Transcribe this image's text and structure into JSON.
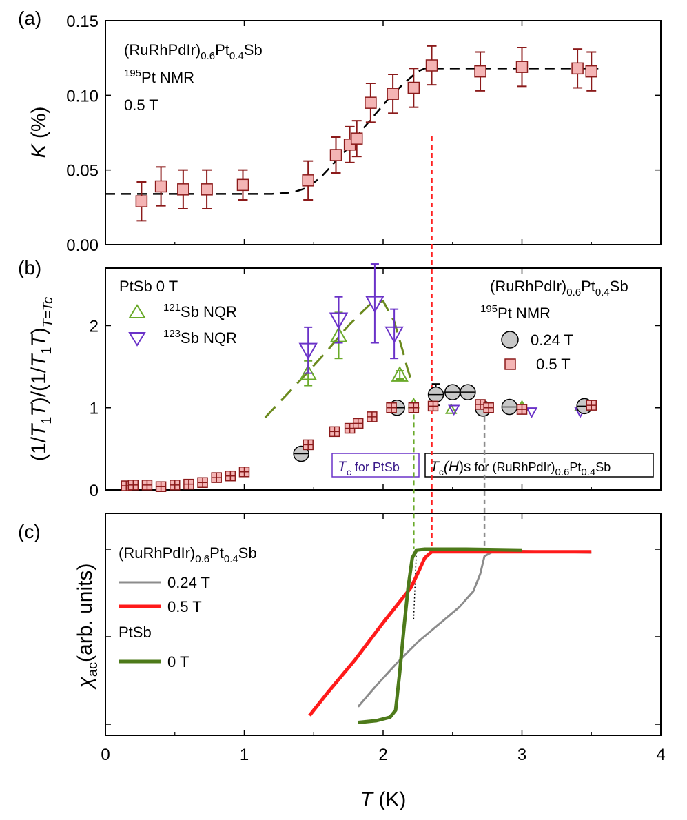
{
  "chart_data": [
    {
      "panel": "(a)",
      "type": "scatter",
      "ylabel": "K (%)",
      "ylabel_italic": "K",
      "ylabel_rest": " (%)",
      "ylim": [
        0,
        0.15
      ],
      "yticks": [
        "0.00",
        "0.05",
        "0.10",
        "0.15"
      ],
      "yvals": [
        0,
        0.05,
        0.1,
        0.15
      ],
      "annotation": {
        "compound_main": "(RuRhPdIr)",
        "sub1": "0.6",
        "mid": "Pt",
        "sub2": "0.4",
        "end": "Sb",
        "isotope": "195",
        "nucleus": "Pt NMR",
        "field": "0.5 T"
      },
      "series": [
        {
          "name": "K 0.5 T",
          "color": "#8b1a1a",
          "fill": "#f4b4b4",
          "marker": "square",
          "x": [
            0.26,
            0.4,
            0.56,
            0.73,
            0.99,
            1.46,
            1.66,
            1.76,
            1.81,
            1.91,
            2.07,
            2.22,
            2.35,
            2.7,
            3.0,
            3.4,
            3.5
          ],
          "y": [
            0.029,
            0.039,
            0.037,
            0.037,
            0.04,
            0.043,
            0.06,
            0.067,
            0.071,
            0.095,
            0.101,
            0.105,
            0.12,
            0.116,
            0.119,
            0.118,
            0.116
          ],
          "err": [
            0.013,
            0.013,
            0.013,
            0.013,
            0.01,
            0.013,
            0.012,
            0.012,
            0.012,
            0.013,
            0.013,
            0.013,
            0.013,
            0.013,
            0.013,
            0.013,
            0.013
          ]
        }
      ],
      "fit_curve": {
        "color": "#000000",
        "style": "dashed",
        "x": [
          0.0,
          0.2,
          0.5,
          0.8,
          1.0,
          1.2,
          1.35,
          1.45,
          1.55,
          1.65,
          1.75,
          1.85,
          1.95,
          2.05,
          2.15,
          2.25,
          2.3,
          2.35,
          2.5,
          3.0,
          3.5,
          3.55
        ],
        "y": [
          0.034,
          0.034,
          0.034,
          0.034,
          0.034,
          0.034,
          0.035,
          0.038,
          0.045,
          0.055,
          0.065,
          0.077,
          0.088,
          0.099,
          0.108,
          0.116,
          0.118,
          0.118,
          0.118,
          0.118,
          0.118,
          0.118
        ]
      }
    },
    {
      "panel": "(b)",
      "type": "scatter",
      "ylabel": "(1/T1T)/(1/T1T)T=Tc",
      "ylim": [
        0,
        2.7
      ],
      "yticks": [
        "0",
        "1",
        "2"
      ],
      "yvals": [
        0,
        1,
        2
      ],
      "legend_left": {
        "title": "PtSb 0 T",
        "items": [
          {
            "iso": "121",
            "label": "Sb NQR"
          },
          {
            "iso": "123",
            "label": "Sb NQR"
          }
        ]
      },
      "legend_right": {
        "compound_main": "(RuRhPdIr)",
        "sub1": "0.6",
        "mid": "Pt",
        "sub2": "0.4",
        "end": "Sb",
        "isotope": "195",
        "nucleus": "Pt NMR",
        "items": [
          {
            "label": "0.24 T"
          },
          {
            "label": "0.5 T"
          }
        ]
      },
      "boxes": [
        {
          "tc": "T",
          "tc_sub": "c",
          "text": " for PtSb"
        },
        {
          "tc": "T",
          "tc_sub": "c",
          "h": "(H)s",
          "text": " for (RuRhPdIr)",
          "sub1": "0.6",
          "mid": "Pt",
          "sub2": "0.4",
          "end": "Sb"
        }
      ],
      "series": [
        {
          "name": "121Sb NQR",
          "color": "#6aaa2a",
          "marker": "triangle-up",
          "x": [
            1.46,
            1.68,
            2.12,
            2.22,
            2.49,
            3.0,
            3.42
          ],
          "y": [
            1.42,
            1.88,
            1.4,
            1.05,
            0.98,
            1.02,
            1.02
          ],
          "err": [
            0.15,
            0.28,
            0.05,
            0.03,
            0.03,
            0.03,
            0.03
          ]
        },
        {
          "name": "123Sb NQR",
          "color": "#6a32c8",
          "marker": "triangle-down",
          "x": [
            1.46,
            1.68,
            1.94,
            2.08,
            2.51,
            3.07,
            3.42
          ],
          "y": [
            1.7,
            2.07,
            2.27,
            1.9,
            0.98,
            0.95,
            0.95
          ],
          "err": [
            0.28,
            0.28,
            0.48,
            0.3,
            0.03,
            0.03,
            0.03
          ]
        },
        {
          "name": "0.24 T",
          "color": "#000000",
          "fill": "#c8c8c8",
          "marker": "circle",
          "x": [
            1.41,
            2.1,
            2.38,
            2.5,
            2.61,
            2.72,
            2.91,
            3.45
          ],
          "y": [
            0.44,
            1.0,
            1.16,
            1.19,
            1.19,
            0.99,
            1.01,
            1.02
          ],
          "err": [
            0.04,
            0.04,
            0.13,
            0.08,
            0.08,
            0.04,
            0.04,
            0.04
          ]
        },
        {
          "name": "0.5 T",
          "color": "#8b1a1a",
          "fill": "#f4b4b4",
          "marker": "square-plus",
          "x": [
            0.15,
            0.2,
            0.3,
            0.4,
            0.5,
            0.6,
            0.7,
            0.8,
            0.9,
            1.0,
            1.46,
            1.65,
            1.76,
            1.82,
            1.92,
            2.06,
            2.22,
            2.36,
            2.7,
            2.76,
            3.0,
            3.5
          ],
          "y": [
            0.05,
            0.06,
            0.06,
            0.04,
            0.06,
            0.07,
            0.09,
            0.15,
            0.17,
            0.22,
            0.55,
            0.71,
            0.75,
            0.81,
            0.89,
            1.0,
            1.0,
            1.02,
            1.04,
            1.0,
            0.98,
            1.03
          ],
          "err": [
            0.03,
            0.03,
            0.03,
            0.03,
            0.03,
            0.03,
            0.03,
            0.03,
            0.03,
            0.04,
            0.05,
            0.05,
            0.05,
            0.05,
            0.05,
            0.05,
            0.05,
            0.05,
            0.05,
            0.05,
            0.05,
            0.05
          ]
        }
      ],
      "fit_curve": {
        "color": "#6b8a1e",
        "style": "dashed",
        "x": [
          1.15,
          1.3,
          1.45,
          1.6,
          1.75,
          1.9,
          2.0,
          2.08,
          2.14,
          2.18,
          2.2
        ],
        "y": [
          0.88,
          1.15,
          1.42,
          1.7,
          2.0,
          2.25,
          2.3,
          2.05,
          1.7,
          1.45,
          1.35
        ]
      }
    },
    {
      "panel": "(c)",
      "type": "line",
      "xlabel": "T (K)",
      "xlabel_italic": "T",
      "xlabel_rest": " (K)",
      "ylabel": "χac(arb. units)",
      "xlim": [
        0,
        4
      ],
      "xticks": [
        "0",
        "1",
        "2",
        "3",
        "4"
      ],
      "xvals": [
        0,
        1,
        2,
        3,
        4
      ],
      "legend": {
        "compound_main": "(RuRhPdIr)",
        "sub1": "0.6",
        "mid": "Pt",
        "sub2": "0.4",
        "end": "Sb",
        "items": [
          {
            "label": "0.24 T",
            "color": "#8c8c8c"
          },
          {
            "label": "0.5 T",
            "color": "#ff1a1a"
          }
        ],
        "title2": "PtSb",
        "items2": [
          {
            "label": "0 T",
            "color": "#4d7a1a"
          }
        ]
      },
      "series": [
        {
          "name": "0.24 T",
          "color": "#8c8c8c",
          "x": [
            1.82,
            1.95,
            2.1,
            2.25,
            2.4,
            2.55,
            2.65,
            2.7,
            2.73,
            2.8,
            3.0,
            3.5
          ],
          "y": [
            0.1,
            0.22,
            0.35,
            0.47,
            0.57,
            0.67,
            0.76,
            0.86,
            0.96,
            0.99,
            0.99,
            0.98
          ],
          "width": 3
        },
        {
          "name": "0.5 T",
          "color": "#ff1a1a",
          "x": [
            1.47,
            1.6,
            1.8,
            2.0,
            2.12,
            2.2,
            2.26,
            2.3,
            2.35,
            2.5,
            3.0,
            3.5
          ],
          "y": [
            0.05,
            0.18,
            0.37,
            0.58,
            0.7,
            0.78,
            0.88,
            0.95,
            0.985,
            0.985,
            0.985,
            0.985
          ],
          "width": 5
        },
        {
          "name": "0 T",
          "color": "#4d7a1a",
          "x": [
            1.82,
            1.95,
            2.05,
            2.09,
            2.12,
            2.15,
            2.18,
            2.21,
            2.24,
            2.3,
            2.6,
            3.0
          ],
          "y": [
            0.01,
            0.02,
            0.04,
            0.08,
            0.3,
            0.55,
            0.78,
            0.95,
            0.995,
            1.0,
            1.0,
            0.995
          ],
          "width": 5
        }
      ]
    }
  ]
}
